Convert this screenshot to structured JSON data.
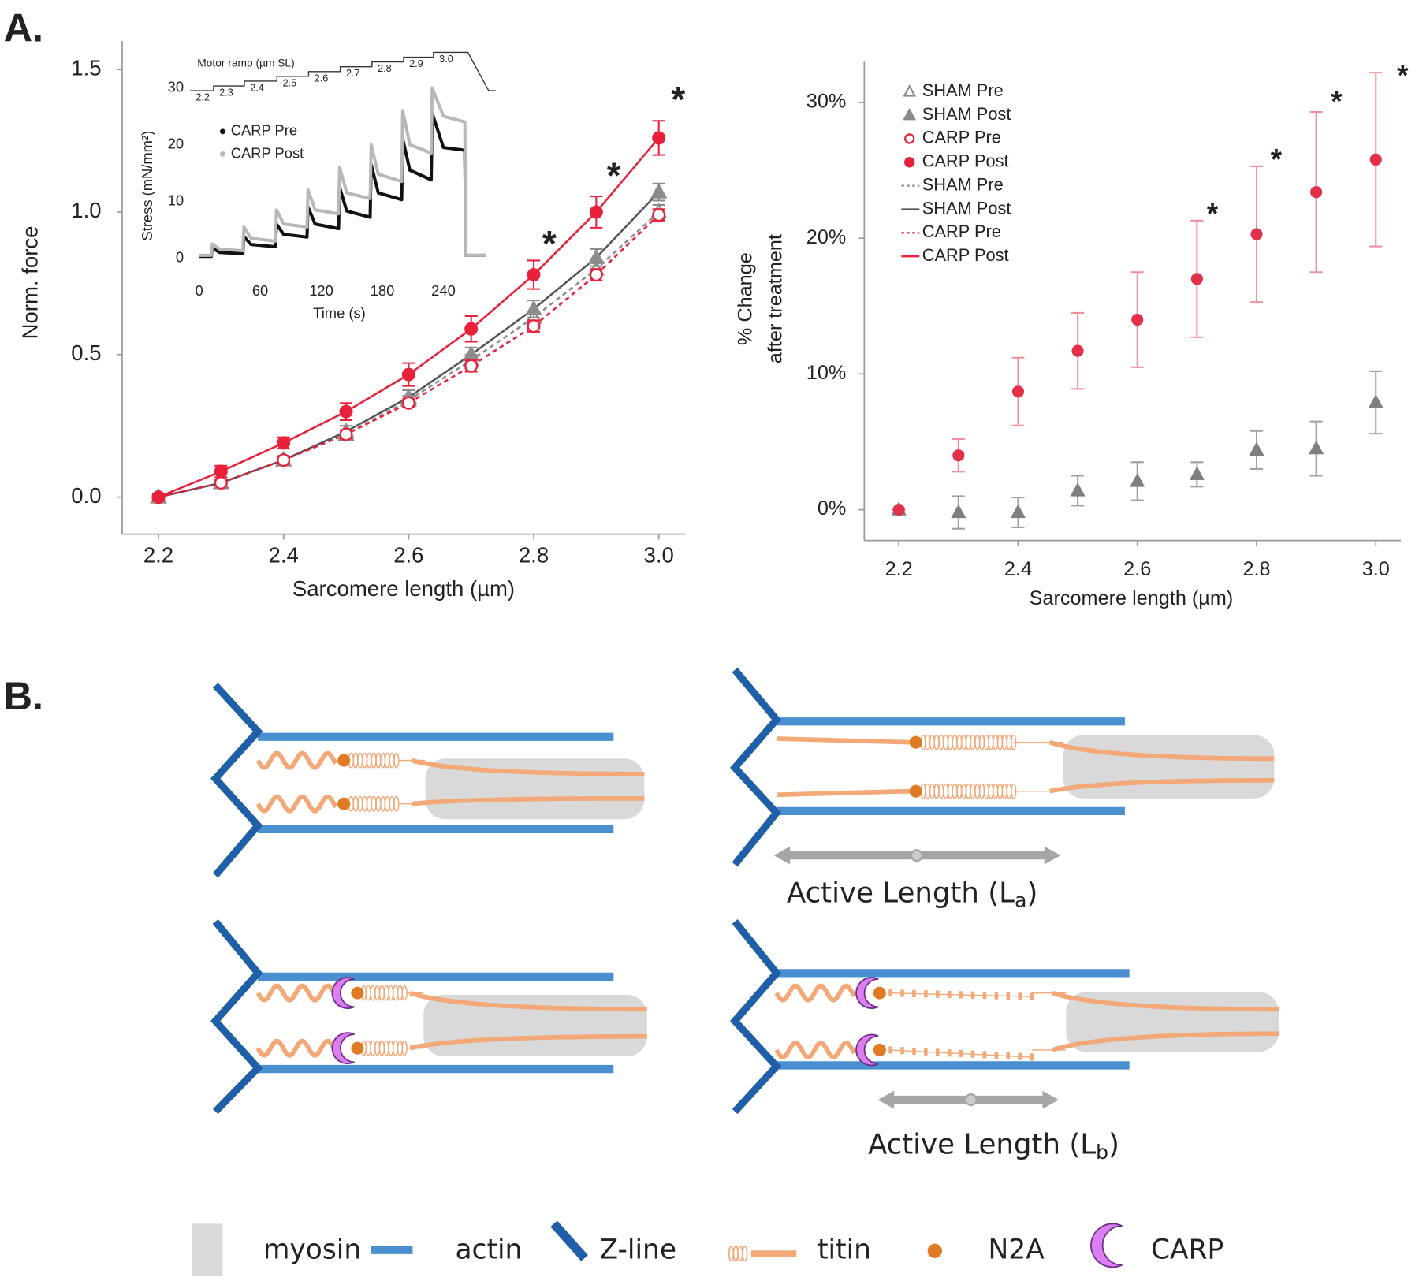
{
  "panel_labels": {
    "a": "A.",
    "b": "B."
  },
  "chart_data": [
    {
      "type": "line",
      "xlabel": "Sarcomere length (µm)",
      "ylabel": "Norm. force",
      "x": [
        2.2,
        2.3,
        2.4,
        2.5,
        2.6,
        2.7,
        2.8,
        2.9,
        3.0
      ],
      "xlim": [
        2.142,
        3.042
      ],
      "xticks": [
        2.2,
        2.4,
        2.6,
        2.8,
        {
          "value": 3,
          "label": "3.0"
        }
      ],
      "ylim": [
        -0.13,
        1.6
      ],
      "yticks": [
        {
          "value": 0,
          "label": "0.0"
        },
        {
          "value": 0.5,
          "label": "0.5"
        },
        {
          "value": 1,
          "label": "1.0"
        },
        {
          "value": 1.5,
          "label": "1.5"
        }
      ],
      "series": [
        {
          "name": "SHAM Pre",
          "color": "#8c8c8c",
          "marker": "triangle-open",
          "values": [
            0,
            0.05,
            0.13,
            0.22,
            0.34,
            0.48,
            0.63,
            0.8,
            1.0
          ],
          "errors": [
            0.005,
            0.01,
            0.01,
            0.015,
            0.015,
            0.02,
            0.02,
            0.025,
            0.025
          ]
        },
        {
          "name": "SHAM Post",
          "color": "#8c8c8c",
          "marker": "triangle",
          "values": [
            0,
            0.05,
            0.13,
            0.23,
            0.35,
            0.5,
            0.66,
            0.84,
            1.07
          ],
          "errors": [
            0.005,
            0.01,
            0.015,
            0.02,
            0.025,
            0.025,
            0.03,
            0.03,
            0.03
          ]
        },
        {
          "name": "CARP Pre",
          "color": "#e8203a",
          "marker": "circle-open",
          "values": [
            0,
            0.05,
            0.13,
            0.22,
            0.33,
            0.46,
            0.6,
            0.78,
            0.99
          ],
          "errors": [
            0.005,
            0.01,
            0.01,
            0.015,
            0.015,
            0.02,
            0.02,
            0.02,
            0.02
          ]
        },
        {
          "name": "CARP Post",
          "color": "#e8203a",
          "marker": "circle",
          "values": [
            0,
            0.09,
            0.19,
            0.3,
            0.43,
            0.59,
            0.78,
            1.0,
            1.26
          ],
          "errors": [
            0.01,
            0.02,
            0.02,
            0.03,
            0.04,
            0.045,
            0.05,
            0.055,
            0.06
          ]
        }
      ],
      "fits": [
        {
          "name": "SHAM Pre",
          "color": "#8c8c8c",
          "dash": "dotted"
        },
        {
          "name": "SHAM Post",
          "color": "#555555",
          "dash": "solid"
        },
        {
          "name": "CARP Pre",
          "color": "#e8203a",
          "dash": "dotted"
        },
        {
          "name": "CARP Post",
          "color": "#e8203a",
          "dash": "solid"
        }
      ],
      "legend": true,
      "annotations": [
        {
          "text": "*",
          "x": 2.825,
          "y": 0.91
        },
        {
          "text": "*",
          "x": 2.928,
          "y": 1.149
        },
        {
          "text": "*",
          "x": 3.031,
          "y": 1.416
        }
      ]
    },
    {
      "type": "line",
      "xlabel": "Time (s)",
      "ylabel": "Stress (mN/mm²)",
      "x": [
        0,
        12,
        13,
        20,
        43,
        44,
        51,
        75,
        76,
        83,
        106,
        107,
        114,
        137,
        138,
        145,
        168,
        169,
        176,
        199,
        200,
        207,
        228,
        229,
        240,
        261,
        262,
        282
      ],
      "xlim": [
        -10,
        284
      ],
      "xticks": [
        0,
        60,
        120,
        180,
        240
      ],
      "ylim": [
        -2,
        35
      ],
      "yticks": [
        0,
        10,
        20,
        30
      ],
      "series": [
        {
          "name": "CARP Pre",
          "color": "#111111",
          "values": [
            0.3,
            0.3,
            1.8,
            1.0,
            0.8,
            3.8,
            2.4,
            2.0,
            6.0,
            4.2,
            3.7,
            9.0,
            6.0,
            5.2,
            12.5,
            8.3,
            7.2,
            16.5,
            11.5,
            10.3,
            21.0,
            15.5,
            13.8,
            25.5,
            19.5,
            19.0,
            0.5,
            0.5
          ]
        },
        {
          "name": "CARP Post",
          "color": "#b8b8b8",
          "values": [
            0.5,
            0.5,
            2.5,
            1.6,
            1.3,
            5.5,
            3.5,
            3.0,
            8.5,
            6.0,
            5.5,
            12,
            8.5,
            7.8,
            16,
            11.5,
            10.5,
            20,
            14.8,
            13.5,
            26,
            20,
            18.5,
            30,
            25,
            24,
            0.5,
            0.5
          ]
        }
      ],
      "motor_ramp": {
        "label": "Motor ramp (µm SL)",
        "steps": [
          "2.2",
          "2.3",
          "2.4",
          "2.5",
          "2.6",
          "2.7",
          "2.8",
          "2.9",
          "3.0"
        ]
      }
    },
    {
      "type": "scatter",
      "xlabel": "Sarcomere length (µm)",
      "ylabel_lines": [
        "% Change",
        "after treatment"
      ],
      "x": [
        2.2,
        2.3,
        2.4,
        2.5,
        2.6,
        2.7,
        2.8,
        2.9,
        3.0
      ],
      "xlim": [
        2.142,
        3.042
      ],
      "xticks": [
        2.2,
        2.4,
        2.6,
        2.8,
        {
          "value": 3,
          "label": "3.0"
        }
      ],
      "ylim": [
        -2.27,
        33
      ],
      "yticks": [
        {
          "value": 0,
          "label": "0%"
        },
        {
          "value": 10,
          "label": "10%"
        },
        {
          "value": 20,
          "label": "20%"
        },
        {
          "value": 30,
          "label": "30%"
        }
      ],
      "series": [
        {
          "color": "#7f7f7f",
          "error_color": "#a0a0a0",
          "marker": "triangle",
          "values": [
            0,
            -0.2,
            -0.2,
            1.4,
            2.1,
            2.6,
            4.4,
            4.5,
            7.9
          ],
          "errors": [
            0,
            1.2,
            1.1,
            1.1,
            1.4,
            0.9,
            1.4,
            2.0,
            2.3
          ]
        },
        {
          "color": "#e2304b",
          "error_color": "#f0909f",
          "marker": "circle",
          "values": [
            0,
            4.0,
            8.7,
            11.7,
            14.0,
            17.0,
            20.3,
            23.4,
            25.8
          ],
          "errors": [
            0,
            1.2,
            2.5,
            2.8,
            3.5,
            4.3,
            5.0,
            5.9,
            6.4
          ]
        }
      ],
      "annotations": [
        {
          "text": "*",
          "x": 2.726,
          "y": 22.33
        },
        {
          "text": "*",
          "x": 2.833,
          "y": 26.33
        },
        {
          "text": "*",
          "x": 2.934,
          "y": 30.6
        },
        {
          "text": "*",
          "x": 3.045,
          "y": 32.5
        }
      ]
    }
  ],
  "diagram": {
    "active_length_a": {
      "main": "Active Length (L",
      "sub": "a",
      "end": ")"
    },
    "active_length_b": {
      "main": "Active Length (L",
      "sub": "b",
      "end": ")"
    },
    "legend": [
      "myosin",
      "actin",
      "Z-line",
      "titin",
      "N2A",
      "CARP"
    ]
  }
}
